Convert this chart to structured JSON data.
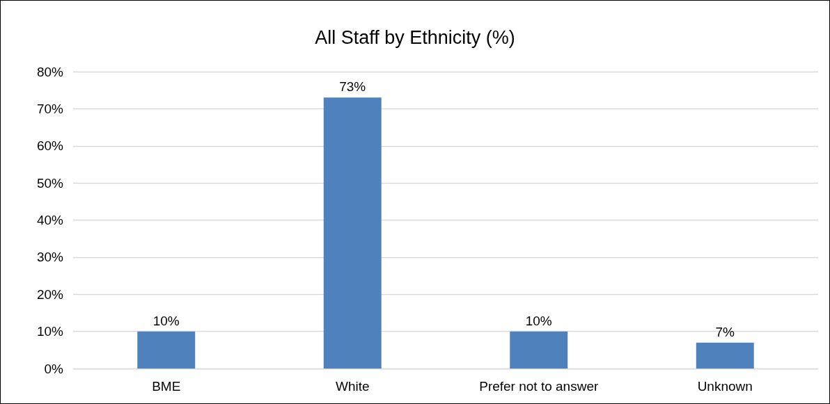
{
  "chart_data": {
    "type": "bar",
    "title": "All Staff by Ethnicity (%)",
    "categories": [
      "BME",
      "White",
      "Prefer not to answer",
      "Unknown"
    ],
    "values": [
      10,
      73,
      10,
      7
    ],
    "value_labels": [
      "10%",
      "73%",
      "10%",
      "7%"
    ],
    "color": "#4f81bd",
    "ylim": [
      0,
      80
    ],
    "yticks": [
      {
        "value": 0,
        "label": "0%"
      },
      {
        "value": 10,
        "label": "10%"
      },
      {
        "value": 20,
        "label": "20%"
      },
      {
        "value": 30,
        "label": "30%"
      },
      {
        "value": 40,
        "label": "40%"
      },
      {
        "value": 50,
        "label": "50%"
      },
      {
        "value": 60,
        "label": "60%"
      },
      {
        "value": 70,
        "label": "70%"
      },
      {
        "value": 80,
        "label": "80%"
      }
    ],
    "grid": "y"
  }
}
